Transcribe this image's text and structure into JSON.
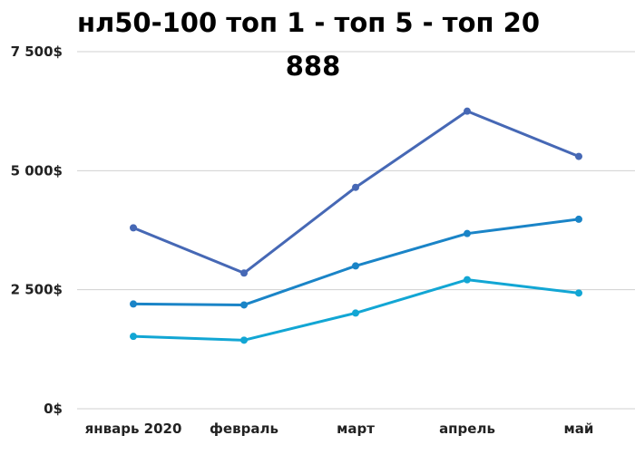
{
  "chart_data": {
    "type": "line",
    "title": "нл50-100 топ 1 - топ 5 - топ 20",
    "subtitle": "888",
    "xlabel": "",
    "ylabel": "",
    "categories": [
      "январь 2020",
      "февраль",
      "март",
      "апрель",
      "май"
    ],
    "y_ticks": [
      "0$",
      "2 500$",
      "5 000$",
      "7 500$"
    ],
    "ylim": [
      0,
      7500
    ],
    "grid": true,
    "series": [
      {
        "color": "#4668b5",
        "values": [
          3800,
          2850,
          4650,
          6250,
          5300
        ]
      },
      {
        "color": "#1a84c7",
        "values": [
          2200,
          2180,
          3000,
          3680,
          3980
        ]
      },
      {
        "color": "#12a6d4",
        "values": [
          1520,
          1440,
          2010,
          2710,
          2430
        ]
      }
    ]
  }
}
